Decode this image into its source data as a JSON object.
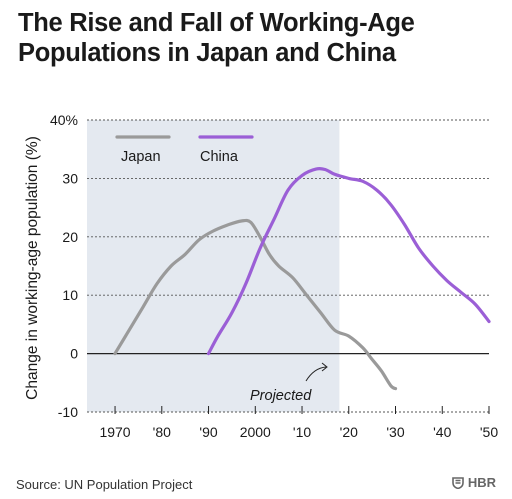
{
  "title_line1": "The Rise and Fall of Working-Age",
  "title_line2": "Populations in Japan and China",
  "source": "Source: UN Population Project",
  "brand": "HBR",
  "colors": {
    "japan": "#9a9a9a",
    "china": "#9b5fd6",
    "shade": "#e4e9f0",
    "grid": "#555555"
  },
  "chart_data": {
    "type": "line",
    "title": "The Rise and Fall of Working-Age Populations in Japan and China",
    "ylabel": "Change in working-age population (%)",
    "xlabel": "",
    "xlim": [
      1964,
      2050
    ],
    "ylim": [
      -10,
      40
    ],
    "x_ticks": [
      1970,
      1980,
      1990,
      2000,
      2010,
      2020,
      2030,
      2040,
      2050
    ],
    "x_tick_labels": [
      "1970",
      "'80",
      "'90",
      "2000",
      "'10",
      "'20",
      "'30",
      "'40",
      "'50"
    ],
    "y_ticks": [
      -10,
      0,
      10,
      20,
      30,
      40
    ],
    "y_tick_labels": [
      "-10",
      "0",
      "10",
      "20",
      "30",
      "40%"
    ],
    "grid": true,
    "projected_from": 2018,
    "annotation": "Projected",
    "legend_position": "top-left",
    "series": [
      {
        "name": "Japan",
        "color": "#9a9a9a",
        "x": [
          1970,
          1973,
          1976,
          1979,
          1982,
          1985,
          1988,
          1991,
          1994,
          1997,
          1999,
          2001,
          2003,
          2005,
          2008,
          2011,
          2014,
          2017,
          2020,
          2023,
          2025,
          2027,
          2029,
          2030
        ],
        "y": [
          0,
          4,
          8,
          12,
          15,
          17,
          19.5,
          21,
          22,
          22.7,
          22.5,
          20,
          17,
          15,
          13,
          10,
          7,
          4,
          3,
          1,
          -1,
          -3,
          -5.5,
          -6
        ]
      },
      {
        "name": "China",
        "color": "#9b5fd6",
        "x": [
          1990,
          1992,
          1995,
          1998,
          2001,
          2004,
          2007,
          2010,
          2013,
          2015,
          2017,
          2020,
          2023,
          2026,
          2029,
          2032,
          2035,
          2038,
          2041,
          2044,
          2047,
          2050
        ],
        "y": [
          0,
          3,
          7,
          12,
          18,
          23,
          28,
          30.5,
          31.6,
          31.5,
          30.7,
          30,
          29.5,
          28,
          25.5,
          22,
          18,
          15,
          12.5,
          10.5,
          8.5,
          5.5
        ]
      }
    ]
  }
}
